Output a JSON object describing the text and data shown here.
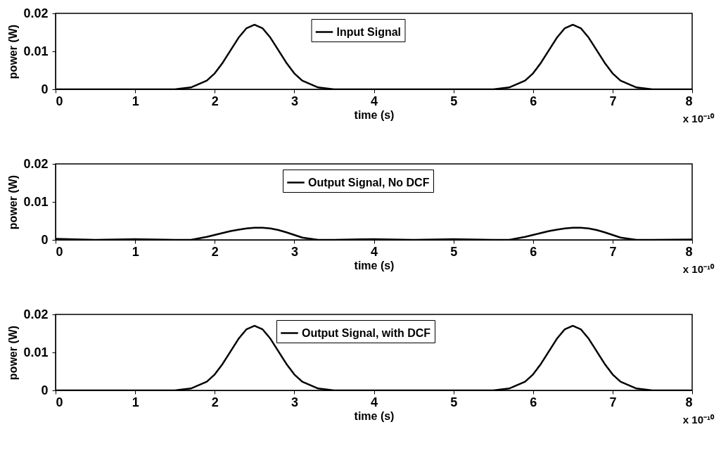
{
  "chart_data": [
    {
      "type": "line",
      "xlabel": "time (s)",
      "ylabel": "power (W)",
      "legend": "top",
      "annotations": [
        "x 10⁻¹⁰"
      ],
      "x": [
        0,
        0.5,
        1,
        1.5,
        1.7,
        1.9,
        2,
        2.1,
        2.2,
        2.3,
        2.4,
        2.5,
        2.6,
        2.7,
        2.8,
        2.9,
        3,
        3.1,
        3.3,
        3.5,
        4,
        4.5,
        5,
        5.5,
        5.7,
        5.9,
        6,
        6.1,
        6.2,
        6.3,
        6.4,
        6.5,
        6.6,
        6.7,
        6.8,
        6.9,
        7,
        7.1,
        7.3,
        7.5,
        8
      ],
      "series": [
        {
          "name": "Input Signal",
          "color": "#000000",
          "values": [
            0,
            0,
            0,
            0,
            0.0005,
            0.0023,
            0.0042,
            0.007,
            0.0103,
            0.0136,
            0.0161,
            0.017,
            0.0161,
            0.0136,
            0.0103,
            0.007,
            0.0042,
            0.0023,
            0.0005,
            0,
            0,
            0,
            0,
            0,
            0.0005,
            0.0023,
            0.0042,
            0.007,
            0.0103,
            0.0136,
            0.0161,
            0.017,
            0.0161,
            0.0136,
            0.0103,
            0.007,
            0.0042,
            0.0023,
            0.0005,
            0,
            0
          ]
        }
      ],
      "xlim": [
        0,
        8
      ],
      "xticks": [
        0,
        1,
        2,
        3,
        4,
        5,
        6,
        7,
        8
      ],
      "ylim": [
        0,
        0.02
      ],
      "yticks": [
        0,
        0.01,
        0.02
      ]
    },
    {
      "type": "line",
      "xlabel": "time (s)",
      "ylabel": "power (W)",
      "legend": "top",
      "annotations": [
        "x 10⁻¹⁰"
      ],
      "x": [
        0,
        0.5,
        1,
        1.5,
        1.7,
        1.9,
        2,
        2.1,
        2.2,
        2.3,
        2.4,
        2.5,
        2.6,
        2.7,
        2.8,
        2.9,
        3,
        3.1,
        3.3,
        3.5,
        4,
        4.5,
        5,
        5.5,
        5.7,
        5.9,
        6,
        6.1,
        6.2,
        6.3,
        6.4,
        6.5,
        6.6,
        6.7,
        6.8,
        6.9,
        7,
        7.1,
        7.3,
        7.5,
        8
      ],
      "series": [
        {
          "name": "Output Signal, No DCF",
          "color": "#000000",
          "values": [
            0.0003,
            0,
            0.0002,
            0,
            0,
            0.0008,
            0.0013,
            0.0018,
            0.0023,
            0.0027,
            0.003,
            0.0032,
            0.0032,
            0.003,
            0.0026,
            0.002,
            0.0013,
            0.0006,
            0,
            0,
            0.0002,
            0,
            0.0002,
            0,
            0,
            0.0008,
            0.0013,
            0.0018,
            0.0023,
            0.0027,
            0.003,
            0.0032,
            0.0032,
            0.003,
            0.0026,
            0.002,
            0.0013,
            0.0006,
            0,
            0,
            0.0001
          ]
        }
      ],
      "xlim": [
        0,
        8
      ],
      "xticks": [
        0,
        1,
        2,
        3,
        4,
        5,
        6,
        7,
        8
      ],
      "ylim": [
        0,
        0.02
      ],
      "yticks": [
        0,
        0.01,
        0.02
      ]
    },
    {
      "type": "line",
      "xlabel": "time (s)",
      "ylabel": "power (W)",
      "legend": "top",
      "annotations": [
        "x 10⁻¹⁰"
      ],
      "x": [
        0,
        0.5,
        1,
        1.5,
        1.7,
        1.9,
        2,
        2.1,
        2.2,
        2.3,
        2.4,
        2.5,
        2.6,
        2.7,
        2.8,
        2.9,
        3,
        3.1,
        3.3,
        3.5,
        4,
        4.5,
        5,
        5.5,
        5.7,
        5.9,
        6,
        6.1,
        6.2,
        6.3,
        6.4,
        6.5,
        6.6,
        6.7,
        6.8,
        6.9,
        7,
        7.1,
        7.3,
        7.5,
        8
      ],
      "series": [
        {
          "name": "Output Signal, with DCF",
          "color": "#000000",
          "values": [
            0,
            0,
            0,
            0,
            0.0005,
            0.0023,
            0.0042,
            0.007,
            0.0103,
            0.0136,
            0.0161,
            0.017,
            0.0161,
            0.0136,
            0.0103,
            0.007,
            0.0042,
            0.0023,
            0.0005,
            0,
            0,
            0,
            0,
            0,
            0.0005,
            0.0023,
            0.0042,
            0.007,
            0.0103,
            0.0136,
            0.0161,
            0.017,
            0.0161,
            0.0136,
            0.0103,
            0.007,
            0.0042,
            0.0023,
            0.0005,
            0,
            0
          ]
        }
      ],
      "xlim": [
        0,
        8
      ],
      "xticks": [
        0,
        1,
        2,
        3,
        4,
        5,
        6,
        7,
        8
      ],
      "ylim": [
        0,
        0.02
      ],
      "yticks": [
        0,
        0.01,
        0.02
      ]
    }
  ]
}
